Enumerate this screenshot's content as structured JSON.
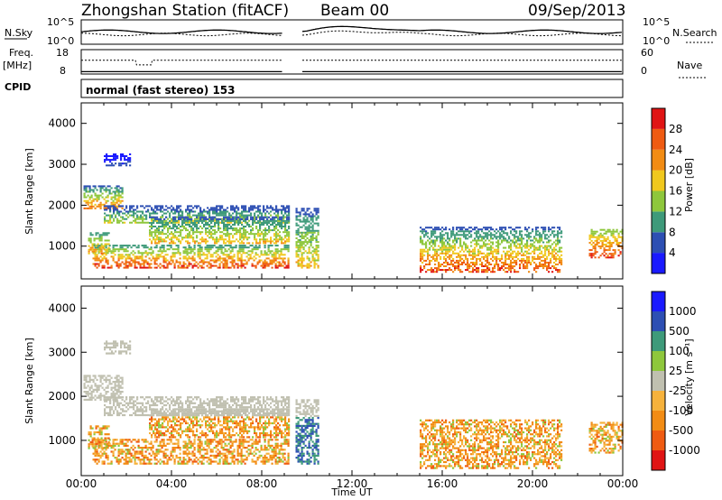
{
  "header": {
    "station": "Zhongshan Station (fitACF)",
    "beam": "Beam 00",
    "date": "09/Sep/2013"
  },
  "strips": {
    "nsky_label": "N.Sky",
    "nsky_ticks": [
      "10^5",
      "10^0"
    ],
    "nsearch_label": "N.Search",
    "nsearch_ticks": [
      "10^5",
      "10^0"
    ],
    "freq_label_1": "Freq.",
    "freq_label_2": "[MHz]",
    "freq_ticks": [
      "18",
      "8"
    ],
    "nave_label": "Nave",
    "nave_ticks": [
      "60",
      "0"
    ],
    "cpid_label": "CPID",
    "cpid_text": "normal (fast stereo) 153"
  },
  "colors": {
    "power_scale": [
      "#1a1aff",
      "#2d4fb3",
      "#3e9a7a",
      "#8ec73c",
      "#f0c81e",
      "#f28c14",
      "#ef5b12",
      "#e01414"
    ],
    "velocity_scale": [
      "#e01414",
      "#ef5b12",
      "#f28c14",
      "#f6b23c",
      "#c0c0b0",
      "#8ec73c",
      "#3e9a7a",
      "#2d4fb3",
      "#1a1aff"
    ]
  },
  "chart_data": [
    {
      "type": "heatmap",
      "panel": "power",
      "ylabel": "Slant Range [km]",
      "xlabel": "Time UT",
      "xticks": [
        "00:00",
        "04:00",
        "08:00",
        "12:00",
        "16:00",
        "20:00",
        "00:00"
      ],
      "yticks": [
        "1000",
        "2000",
        "3000",
        "4000"
      ],
      "ylim": [
        200,
        4500
      ],
      "colorbar_label": "Power [dB]",
      "colorbar_ticks": [
        "4",
        "8",
        "12",
        "16",
        "20",
        "24",
        "28"
      ]
    },
    {
      "type": "heatmap",
      "panel": "velocity",
      "ylabel": "Slant Range [km]",
      "xlabel": "Time UT",
      "xticks": [
        "00:00",
        "04:00",
        "08:00",
        "12:00",
        "16:00",
        "20:00",
        "00:00"
      ],
      "yticks": [
        "1000",
        "2000",
        "3000",
        "4000"
      ],
      "ylim": [
        200,
        4500
      ],
      "colorbar_label": "Velocity [m s⁻¹]",
      "colorbar_ticks": [
        "1000",
        "500",
        "100",
        "25",
        "-25",
        "-100",
        "-500",
        "-1000"
      ]
    }
  ]
}
